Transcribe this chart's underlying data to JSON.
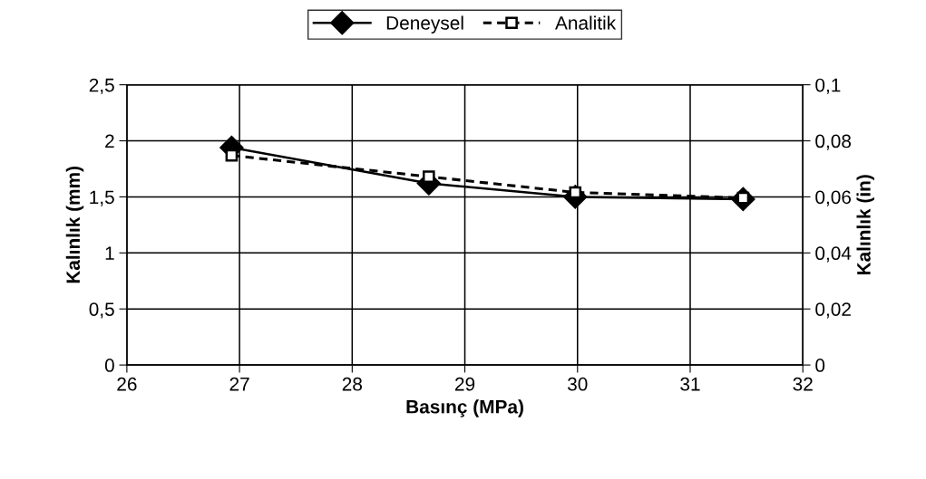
{
  "chart_data": {
    "type": "line",
    "xlabel": "Basınç (MPa)",
    "ylabel": "Kalınlık (mm)",
    "y2label": "Kalınlık (in)",
    "x": [
      26.93,
      28.68,
      29.98,
      31.47
    ],
    "series": [
      {
        "name": "Deneysel",
        "color": "#000000",
        "values": [
          1.94,
          1.62,
          1.5,
          1.48
        ],
        "marker": "diamond",
        "line_style": "solid"
      },
      {
        "name": "Analitik",
        "color": "#000000",
        "values": [
          1.87,
          1.68,
          1.54,
          1.49
        ],
        "marker": "square",
        "line_style": "dashed"
      }
    ],
    "xlim": [
      26,
      32
    ],
    "xticks": [
      26,
      27,
      28,
      29,
      30,
      31,
      32
    ],
    "ylim": [
      0,
      2.5
    ],
    "yticks": [
      0,
      {
        "value": 0.5,
        "label": "0,5"
      },
      1,
      {
        "value": 1.5,
        "label": "1,5"
      },
      2,
      {
        "value": 2.5,
        "label": "2,5"
      }
    ],
    "y2lim": [
      0,
      0.1
    ],
    "y2ticks": [
      0,
      {
        "value": 0.02,
        "label": "0,02"
      },
      {
        "value": 0.04,
        "label": "0,04"
      },
      {
        "value": 0.06,
        "label": "0,06"
      },
      {
        "value": 0.08,
        "label": "0,08"
      },
      {
        "value": 0.1,
        "label": "0,1"
      }
    ],
    "grid": true,
    "legend": "top"
  }
}
